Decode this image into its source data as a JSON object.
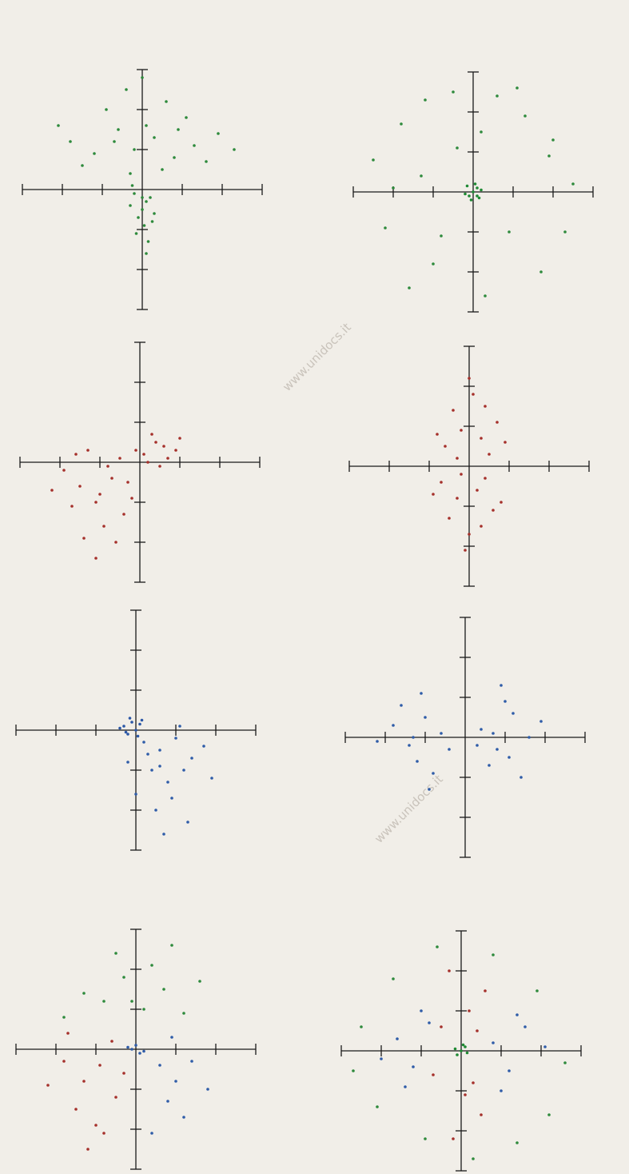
{
  "watermarks": [
    "www.unidocs.it",
    "www.unidocs.it"
  ],
  "chart_data": [
    {
      "type": "scatter",
      "xlim": [
        -3,
        3
      ],
      "ylim": [
        -3,
        3
      ],
      "xticks": [
        -3,
        -2,
        -1,
        1,
        2,
        3
      ],
      "yticks": [
        -3,
        -2,
        -1,
        1,
        2,
        3
      ],
      "series": [
        {
          "color": "#2e8a3c",
          "x": [
            -1.8,
            -1.2,
            -0.6,
            -0.2,
            0.3,
            0.8,
            1.3,
            1.9,
            -1.5,
            -0.9,
            -0.4,
            0.1,
            0.6,
            1.1,
            1.6,
            -0.7,
            0.0,
            0.5,
            -0.3,
            0.9,
            2.3,
            -2.1
          ],
          "y": [
            1.2,
            0.9,
            1.5,
            1.0,
            1.3,
            0.8,
            1.1,
            1.4,
            0.6,
            2.0,
            2.5,
            1.6,
            2.2,
            1.8,
            0.7,
            1.2,
            2.8,
            0.5,
            0.4,
            1.5,
            1.0,
            1.6
          ]
        },
        {
          "color": "#2e8a3c",
          "x": [
            -0.2,
            0.1,
            0.0,
            -0.1,
            0.2,
            0.3,
            -0.3,
            0.05,
            -0.15,
            0.15,
            0.0,
            -0.25,
            0.25,
            0.1
          ],
          "y": [
            -0.1,
            -0.3,
            -0.5,
            -0.7,
            -0.2,
            -0.6,
            -0.4,
            -0.9,
            -1.1,
            -1.3,
            -0.2,
            0.1,
            -0.8,
            -1.6
          ]
        }
      ]
    },
    {
      "type": "scatter",
      "xlim": [
        -3,
        3
      ],
      "ylim": [
        -3,
        3
      ],
      "xticks": [
        -3,
        -2,
        -1,
        1,
        2,
        3
      ],
      "yticks": [
        -3,
        -2,
        -1,
        1,
        2,
        3
      ],
      "series": [
        {
          "color": "#1f8a34",
          "x": [
            0,
            0.1,
            -0.1,
            0.2,
            -0.2,
            0.05,
            -0.05,
            0.15,
            -0.15,
            0.1
          ],
          "y": [
            0,
            0.1,
            -0.1,
            0.05,
            -0.05,
            0.2,
            -0.2,
            -0.15,
            0.15,
            -0.1
          ]
        },
        {
          "color": "#2e8a3c",
          "x": [
            -2.5,
            -1.8,
            -1.2,
            -0.5,
            0.6,
            1.3,
            2.0,
            2.5,
            -2.2,
            -1.0,
            0.3,
            1.7,
            2.3,
            -1.6,
            -0.4,
            0.9,
            1.9,
            -2.0,
            -0.8,
            1.1,
            0.2,
            -1.3
          ],
          "y": [
            0.8,
            1.7,
            2.3,
            2.5,
            2.4,
            1.9,
            1.3,
            0.2,
            -0.9,
            -1.8,
            -2.6,
            -2.0,
            -1.0,
            -2.4,
            1.1,
            -1.0,
            0.9,
            0.1,
            -1.1,
            2.6,
            1.5,
            0.4
          ]
        }
      ]
    },
    {
      "type": "scatter",
      "xlim": [
        -3,
        3
      ],
      "ylim": [
        -3,
        3
      ],
      "xticks": [
        -3,
        -2,
        -1,
        1,
        2,
        3
      ],
      "yticks": [
        -3,
        -2,
        -1,
        1,
        2,
        3
      ],
      "series": [
        {
          "color": "#a5302b",
          "x": [
            -1.9,
            -1.5,
            -1.1,
            -0.7,
            -0.4,
            -1.3,
            -0.9,
            -0.5,
            -1.7,
            -1.0,
            -0.6,
            -2.2,
            -1.4,
            -0.8,
            -0.2,
            -1.1,
            -0.3,
            -1.6
          ],
          "y": [
            -0.2,
            -0.6,
            -1.0,
            -0.4,
            -1.3,
            0.3,
            -1.6,
            0.1,
            -1.1,
            -0.8,
            -2.0,
            -0.7,
            -1.9,
            -0.1,
            -0.9,
            -2.4,
            -0.5,
            0.2
          ]
        },
        {
          "color": "#a5302b",
          "x": [
            0.1,
            0.4,
            0.7,
            0.3,
            0.9,
            0.5,
            0.2,
            0.6,
            1.0,
            -0.1
          ],
          "y": [
            0.2,
            0.5,
            0.1,
            0.7,
            0.3,
            -0.1,
            0.0,
            0.4,
            0.6,
            0.3
          ]
        }
      ]
    },
    {
      "type": "scatter",
      "xlim": [
        -3,
        3
      ],
      "ylim": [
        -3,
        3
      ],
      "xticks": [
        -3,
        -2,
        -1,
        1,
        2,
        3
      ],
      "yticks": [
        -3,
        -2,
        -1,
        1,
        2,
        3
      ],
      "series": [
        {
          "color": "#a5302b",
          "x": [
            -0.6,
            -0.2,
            0.3,
            0.7,
            -0.4,
            0.1,
            0.5,
            -0.8,
            0.0,
            0.4,
            -0.3,
            0.9
          ],
          "y": [
            0.5,
            0.9,
            0.7,
            1.1,
            1.4,
            1.8,
            0.3,
            0.8,
            2.2,
            1.5,
            0.2,
            0.6
          ]
        },
        {
          "color": "#a5302b",
          "x": [
            -0.7,
            -0.3,
            0.2,
            0.6,
            -0.5,
            0.0,
            0.4,
            -0.1,
            0.8,
            -0.9,
            0.3,
            -0.2
          ],
          "y": [
            -0.4,
            -0.8,
            -0.6,
            -1.1,
            -1.3,
            -1.7,
            -0.3,
            -2.1,
            -0.9,
            -0.7,
            -1.5,
            -0.2
          ]
        }
      ]
    },
    {
      "type": "scatter",
      "xlim": [
        -3,
        3
      ],
      "ylim": [
        -3,
        3
      ],
      "xticks": [
        -3,
        -2,
        -1,
        1,
        2,
        3
      ],
      "yticks": [
        -3,
        -2,
        -1,
        1,
        2,
        3
      ],
      "series": [
        {
          "color": "#2b57a6",
          "x": [
            -0.3,
            -0.1,
            0.0,
            -0.2,
            0.1,
            -0.4,
            -0.15,
            0.05,
            -0.25,
            0.15
          ],
          "y": [
            0.1,
            0.2,
            0.0,
            -0.1,
            0.15,
            0.05,
            0.3,
            -0.15,
            -0.05,
            0.25
          ]
        },
        {
          "color": "#2f5ca8",
          "x": [
            0.2,
            0.6,
            1.0,
            1.4,
            0.4,
            0.8,
            1.2,
            1.7,
            0.0,
            0.5,
            0.9,
            1.3,
            -0.2,
            0.7,
            1.9,
            0.3,
            1.1,
            0.6
          ],
          "y": [
            -0.3,
            -0.5,
            -0.2,
            -0.7,
            -1.0,
            -1.3,
            -1.0,
            -0.4,
            -1.6,
            -2.0,
            -1.7,
            -2.3,
            -0.8,
            -2.6,
            -1.2,
            -0.6,
            0.1,
            -0.9
          ]
        }
      ]
    },
    {
      "type": "scatter",
      "xlim": [
        -3,
        3
      ],
      "ylim": [
        -3,
        3
      ],
      "xticks": [
        -3,
        -2,
        -1,
        1,
        2,
        3
      ],
      "yticks": [
        -3,
        -2,
        -1,
        1,
        2,
        3
      ],
      "series": [
        {
          "color": "#2f5ca8",
          "x": [
            -1.8,
            -1.4,
            -1.0,
            -0.6,
            -1.2,
            -0.8,
            -1.6,
            -0.4,
            -1.1,
            -2.2,
            -0.9,
            -1.3
          ],
          "y": [
            0.3,
            -0.2,
            0.5,
            0.1,
            -0.6,
            -0.9,
            0.8,
            -0.3,
            1.1,
            -0.1,
            -1.3,
            0.0
          ]
        },
        {
          "color": "#2f5ca8",
          "x": [
            0.4,
            0.8,
            1.2,
            1.6,
            0.6,
            1.0,
            1.4,
            0.3,
            0.9,
            1.9,
            1.1,
            0.7
          ],
          "y": [
            0.2,
            -0.3,
            0.6,
            0.0,
            -0.7,
            0.9,
            -1.0,
            -0.2,
            1.3,
            0.4,
            -0.5,
            0.1
          ]
        }
      ]
    },
    {
      "type": "scatter",
      "xlim": [
        -3,
        3
      ],
      "ylim": [
        -3,
        3
      ],
      "xticks": [
        -3,
        -2,
        -1,
        1,
        2,
        3
      ],
      "yticks": [
        -3,
        -2,
        -1,
        1,
        2,
        3
      ],
      "series": [
        {
          "color": "#2e8a3c",
          "x": [
            -0.8,
            -0.3,
            0.2,
            0.7,
            1.2,
            -1.3,
            -0.5,
            0.4,
            0.9,
            -0.1,
            1.6,
            -1.8
          ],
          "y": [
            1.2,
            1.8,
            1.0,
            1.5,
            0.9,
            1.4,
            2.4,
            2.1,
            2.6,
            1.2,
            1.7,
            0.8
          ]
        },
        {
          "color": "#a5302b",
          "x": [
            -1.8,
            -1.3,
            -0.9,
            -0.5,
            -1.5,
            -1.0,
            -0.6,
            -2.2,
            -1.2,
            -0.3,
            -1.7,
            -0.8
          ],
          "y": [
            -0.3,
            -0.8,
            -0.4,
            -1.2,
            -1.5,
            -1.9,
            0.2,
            -0.9,
            -2.5,
            -0.6,
            0.4,
            -2.1
          ]
        },
        {
          "color": "#2f5ca8",
          "x": [
            -0.1,
            0.0,
            0.1,
            -0.2,
            0.2,
            0.6,
            1.0,
            1.4,
            0.8,
            1.2,
            0.4,
            1.8,
            0.9
          ],
          "y": [
            0.0,
            0.1,
            -0.1,
            0.05,
            -0.05,
            -0.4,
            -0.8,
            -0.3,
            -1.3,
            -1.7,
            -2.1,
            -1.0,
            0.3
          ]
        }
      ]
    },
    {
      "type": "scatter",
      "xlim": [
        -3,
        3
      ],
      "ylim": [
        -3,
        3
      ],
      "xticks": [
        -3,
        -2,
        -1,
        1,
        2,
        3
      ],
      "yticks": [
        -3,
        -2,
        -1,
        1,
        2,
        3
      ],
      "series": [
        {
          "color": "#a5302b",
          "x": [
            -0.5,
            0.2,
            0.6,
            -0.3,
            0.4,
            -0.7,
            0.1,
            0.5,
            -0.2,
            0.3
          ],
          "y": [
            0.6,
            1.0,
            1.5,
            2.0,
            0.5,
            -0.6,
            -1.1,
            -1.6,
            -2.2,
            -0.8
          ]
        },
        {
          "color": "#2f5ca8",
          "x": [
            -1.6,
            -1.2,
            -0.8,
            -2.0,
            -1.4,
            0.8,
            1.2,
            1.6,
            1.0,
            2.1,
            -1.0,
            1.4
          ],
          "y": [
            0.3,
            -0.4,
            0.7,
            -0.2,
            -0.9,
            0.2,
            -0.5,
            0.6,
            -1.0,
            0.1,
            1.0,
            0.9
          ]
        },
        {
          "color": "#2e8a3c",
          "x": [
            -2.5,
            -1.7,
            -0.6,
            0.8,
            1.9,
            2.6,
            2.2,
            -2.1,
            0.3,
            -0.9,
            1.4,
            -2.7
          ],
          "y": [
            0.6,
            1.8,
            2.6,
            2.4,
            1.5,
            -0.3,
            -1.6,
            -1.4,
            -2.7,
            -2.2,
            -2.3,
            -0.5
          ]
        },
        {
          "color": "#1f8a34",
          "x": [
            0,
            0.1,
            -0.1,
            0.15,
            -0.15,
            0.05
          ],
          "y": [
            0,
            0.1,
            -0.1,
            -0.05,
            0.05,
            0.15
          ]
        }
      ]
    }
  ]
}
